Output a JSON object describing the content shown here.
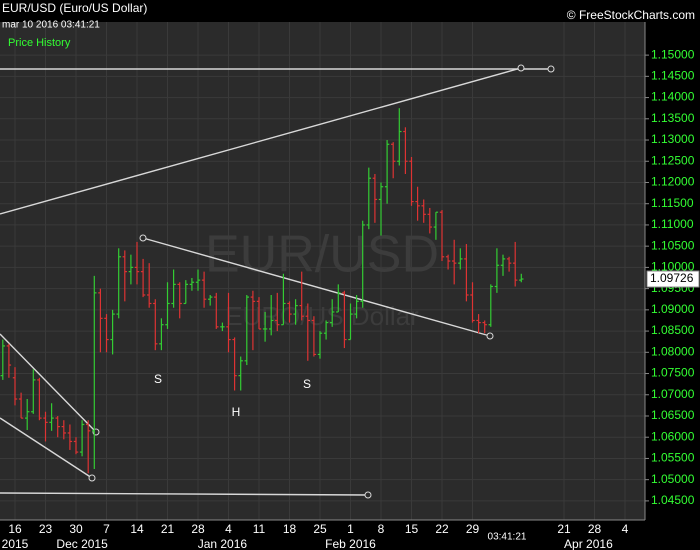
{
  "chart_data": {
    "type": "ohlc",
    "title": "EUR/USD (Euro/US Dollar)",
    "timestamp": "mar 10 2016 03:41:21",
    "legend": "Price History",
    "copyright": "© FreeStockCharts.com",
    "watermark": "EUR/USD",
    "watermark_subtitle": "EURO/US Dollar",
    "time_label": "03:41:21",
    "annotations": [
      "S",
      "H",
      "S"
    ],
    "up_color": "#33cc33",
    "down_color": "#dd3333",
    "grid": true,
    "categories": [
      null,
      null,
      "16",
      null,
      null,
      null,
      null,
      "23",
      null,
      null,
      null,
      null,
      "30",
      null,
      null,
      null,
      null,
      "7",
      null,
      null,
      null,
      null,
      "14",
      null,
      null,
      null,
      null,
      "21",
      null,
      null,
      null,
      null,
      "28",
      null,
      null,
      null,
      null,
      "4",
      null,
      null,
      null,
      null,
      "11",
      null,
      null,
      null,
      null,
      "18",
      null,
      null,
      null,
      null,
      "25",
      null,
      null,
      null,
      null,
      "1",
      null,
      null,
      null,
      null,
      "8",
      null,
      null,
      null,
      null,
      "15",
      null,
      null,
      null,
      null,
      "22",
      null,
      null,
      null,
      null,
      "29",
      null,
      null,
      null,
      null,
      null,
      null,
      null,
      null,
      null,
      null,
      null,
      null,
      null,
      null,
      "21",
      null,
      null,
      null,
      null,
      "28",
      null,
      null,
      null,
      null,
      "4",
      null,
      null
    ],
    "category_groups": [
      null,
      null,
      "2015",
      null,
      null,
      null,
      null,
      null,
      null,
      null,
      null,
      null,
      null,
      "Dec 2015",
      null,
      null,
      null,
      null,
      null,
      null,
      null,
      null,
      null,
      null,
      null,
      null,
      null,
      null,
      null,
      null,
      null,
      null,
      null,
      null,
      null,
      null,
      "Jan 2016",
      null,
      null,
      null,
      null,
      null,
      null,
      null,
      null,
      null,
      null,
      null,
      null,
      null,
      null,
      null,
      null,
      null,
      null,
      null,
      null,
      "Feb 2016",
      null,
      null,
      null,
      null,
      null,
      null,
      null,
      null,
      null,
      null,
      null,
      null,
      null,
      null,
      null,
      null,
      null,
      null,
      null,
      null,
      null,
      null,
      null,
      null,
      null,
      null,
      null,
      null,
      null,
      null,
      null,
      null,
      null,
      null,
      null,
      null,
      null,
      null,
      "Apr 2016",
      null,
      null,
      null
    ],
    "open": [
      1.0745,
      1.0815,
      1.074,
      1.069,
      1.0645,
      1.066,
      1.0735,
      1.0645,
      1.0635,
      1.0645,
      1.0625,
      1.061,
      1.059,
      1.0565,
      1.063,
      1.0615,
      1.094,
      1.088,
      1.083,
      1.089,
      1.1025,
      1.099,
      1.1,
      1.099,
      1.0935,
      1.0915,
      1.082,
      1.0865,
      1.0915,
      1.096,
      1.0915,
      1.096,
      1.0965,
      1.097,
      1.0925,
      1.093,
      1.086,
      1.086,
      1.083,
      1.0745,
      1.078,
      1.093,
      1.092,
      1.0855,
      1.0855,
      1.0875,
      1.0865,
      1.0915,
      1.089,
      1.091,
      1.0885,
      1.0875,
      1.0795,
      1.0845,
      1.087,
      1.0895,
      1.094,
      1.083,
      1.089,
      1.092,
      1.11,
      1.121,
      1.116,
      1.119,
      1.129,
      1.125,
      1.132,
      1.125,
      1.1155,
      1.1145,
      1.1125,
      1.1095,
      1.113,
      1.1025,
      1.1015,
      1.101,
      1.102,
      1.0935,
      1.0875,
      1.087,
      1.0865,
      1.0955,
      1.1005,
      1.102,
      1.101,
      1.097,
      null,
      null,
      null,
      null,
      null,
      null,
      null,
      null,
      null,
      null,
      null,
      null,
      null,
      null,
      null,
      null,
      null,
      null,
      null
    ],
    "high": [
      1.083,
      1.082,
      1.0765,
      1.0705,
      1.069,
      1.076,
      1.074,
      1.066,
      1.068,
      1.065,
      1.064,
      1.063,
      1.06,
      1.064,
      1.064,
      1.098,
      1.095,
      1.089,
      1.09,
      1.1045,
      1.104,
      1.103,
      1.106,
      1.102,
      1.101,
      1.0925,
      1.088,
      1.0965,
      1.0995,
      1.0965,
      1.097,
      1.0975,
      1.0995,
      1.099,
      1.0935,
      1.094,
      1.087,
      1.094,
      1.0835,
      1.079,
      1.0935,
      1.0945,
      1.093,
      1.0895,
      1.0935,
      1.094,
      1.0985,
      1.092,
      1.0925,
      1.099,
      1.0915,
      1.0885,
      1.085,
      1.0875,
      1.0925,
      1.096,
      1.0945,
      1.0915,
      1.0935,
      1.111,
      1.1235,
      1.122,
      1.12,
      1.13,
      1.1295,
      1.1375,
      1.133,
      1.126,
      1.119,
      1.116,
      1.114,
      1.113,
      1.1135,
      1.103,
      1.1065,
      1.1045,
      1.1055,
      1.0965,
      1.089,
      1.0875,
      1.096,
      1.1045,
      1.103,
      1.1025,
      1.106,
      1.0985,
      null,
      null,
      null,
      null,
      null,
      null,
      null,
      null,
      null,
      null,
      null,
      null,
      null,
      null,
      null,
      null,
      null,
      null,
      null
    ],
    "low": [
      1.0735,
      1.074,
      1.0675,
      1.0645,
      1.0617,
      1.0655,
      1.064,
      1.059,
      1.0615,
      1.06,
      1.0595,
      1.057,
      1.056,
      1.0555,
      1.0515,
      1.0525,
      1.08,
      1.08,
      1.0795,
      1.088,
      1.092,
      1.096,
      1.096,
      1.093,
      1.0905,
      1.0805,
      1.0805,
      1.0855,
      1.0905,
      1.088,
      1.0915,
      1.0945,
      1.0945,
      1.0905,
      1.091,
      1.0855,
      1.085,
      1.08,
      1.071,
      1.071,
      1.077,
      1.0805,
      1.0855,
      1.0825,
      1.084,
      1.085,
      1.0865,
      1.087,
      1.0865,
      1.0875,
      1.078,
      1.079,
      1.0785,
      1.083,
      1.086,
      1.0895,
      1.081,
      1.083,
      1.088,
      1.0905,
      1.109,
      1.1105,
      1.1075,
      1.115,
      1.121,
      1.124,
      1.122,
      1.1145,
      1.111,
      1.1105,
      1.108,
      1.1065,
      1.1015,
      1.0995,
      1.096,
      1.0995,
      1.092,
      1.087,
      1.0845,
      1.0845,
      1.086,
      1.094,
      1.098,
      1.099,
      1.0955,
      1.0965,
      null,
      null,
      null,
      null,
      null,
      null,
      null,
      null,
      null,
      null,
      null,
      null,
      null,
      null,
      null,
      null,
      null,
      null,
      null
    ],
    "close": [
      1.0815,
      1.077,
      1.069,
      1.0645,
      1.066,
      1.0735,
      1.0645,
      1.0635,
      1.0645,
      1.0625,
      1.061,
      1.059,
      1.0565,
      1.063,
      1.0615,
      1.094,
      1.088,
      1.083,
      1.089,
      1.1025,
      1.099,
      1.1,
      1.099,
      1.0935,
      1.0915,
      1.082,
      1.0865,
      1.0915,
      1.096,
      1.0915,
      1.096,
      1.0965,
      1.097,
      1.0925,
      1.093,
      1.086,
      1.086,
      1.083,
      1.0745,
      1.078,
      1.093,
      1.092,
      1.0855,
      1.0855,
      1.0875,
      1.0865,
      1.0915,
      1.089,
      1.091,
      1.0885,
      1.0875,
      1.0795,
      1.0845,
      1.087,
      1.0895,
      1.094,
      1.083,
      1.089,
      1.092,
      1.11,
      1.121,
      1.116,
      1.119,
      1.129,
      1.125,
      1.132,
      1.125,
      1.1155,
      1.1145,
      1.1125,
      1.1095,
      1.113,
      1.1025,
      1.1015,
      1.101,
      1.102,
      1.0935,
      1.0875,
      1.087,
      1.0865,
      1.0955,
      1.1005,
      1.102,
      1.101,
      1.097,
      1.09726,
      null,
      null,
      null,
      null,
      null,
      null,
      null,
      null,
      null,
      null,
      null,
      null,
      null,
      null,
      null,
      null,
      null,
      null,
      null
    ],
    "last_price": 1.09726,
    "ylim": [
      1.0405,
      1.1578
    ],
    "yticks": [
      {
        "value": 1.045,
        "label": "1.04500"
      },
      {
        "value": 1.05,
        "label": "1.05000"
      },
      {
        "value": 1.055,
        "label": "1.05500"
      },
      {
        "value": 1.06,
        "label": "1.06000"
      },
      {
        "value": 1.065,
        "label": "1.06500"
      },
      {
        "value": 1.07,
        "label": "1.07000"
      },
      {
        "value": 1.075,
        "label": "1.07500"
      },
      {
        "value": 1.08,
        "label": "1.08000"
      },
      {
        "value": 1.085,
        "label": "1.08500"
      },
      {
        "value": 1.09,
        "label": "1.09000"
      },
      {
        "value": 1.095,
        "label": "1.09500"
      },
      {
        "value": 1.1,
        "label": "1.10000"
      },
      {
        "value": 1.105,
        "label": "1.10500"
      },
      {
        "value": 1.11,
        "label": "1.11000"
      },
      {
        "value": 1.115,
        "label": "1.11500"
      },
      {
        "value": 1.12,
        "label": "1.12000"
      },
      {
        "value": 1.125,
        "label": "1.12500"
      },
      {
        "value": 1.13,
        "label": "1.13000"
      },
      {
        "value": 1.135,
        "label": "1.13500"
      },
      {
        "value": 1.14,
        "label": "1.14000"
      },
      {
        "value": 1.145,
        "label": "1.14500"
      },
      {
        "value": 1.15,
        "label": "1.15000"
      }
    ]
  }
}
